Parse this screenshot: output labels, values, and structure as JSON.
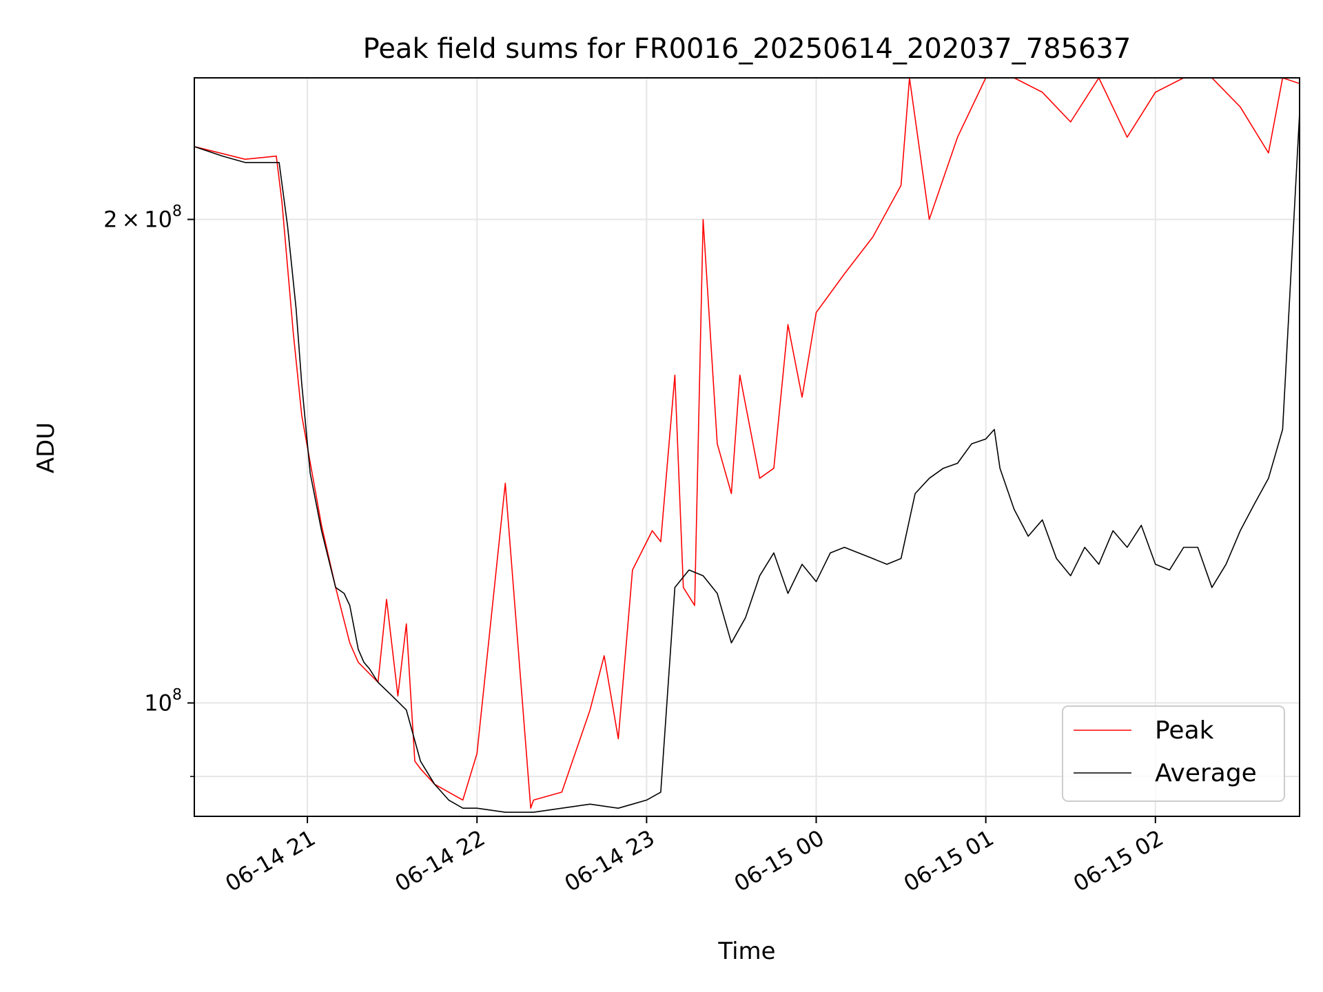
{
  "chart_data": {
    "type": "line",
    "title": "Peak field sums for FR0016_20250614_202037_785637",
    "xlabel": "Time",
    "ylabel": "ADU",
    "y_scale": "log",
    "xlim": [
      "2025-06-14 20:20",
      "2025-06-15 02:51"
    ],
    "ylim": [
      85000000,
      245000000
    ],
    "x_ticks": [
      "06-14 21",
      "06-14 22",
      "06-14 23",
      "06-15 00",
      "06-15 01",
      "06-15 02"
    ],
    "x_tick_times": [
      "2025-06-14 21:00",
      "2025-06-14 22:00",
      "2025-06-14 23:00",
      "2025-06-15 00:00",
      "2025-06-15 01:00",
      "2025-06-15 02:00"
    ],
    "y_tick_labels": [
      {
        "value": 200000000,
        "mantissa": "2",
        "sep": "×",
        "base": "10",
        "exp": "8"
      },
      {
        "value": 100000000,
        "mantissa": "",
        "sep": "",
        "base": "10",
        "exp": "8"
      }
    ],
    "y_minor_ticks": [
      90000000
    ],
    "grid": true,
    "legend_position": "lower-right",
    "colors": {
      "peak": "#ff0000",
      "average": "#000000",
      "grid": "#e6e6e6"
    },
    "series": [
      {
        "name": "Peak",
        "x": [
          "2025-06-14 20:20",
          "2025-06-14 20:38",
          "2025-06-14 20:49",
          "2025-06-14 20:51",
          "2025-06-14 20:55",
          "2025-06-14 20:58",
          "2025-06-14 21:05",
          "2025-06-14 21:10",
          "2025-06-14 21:15",
          "2025-06-14 21:18",
          "2025-06-14 21:25",
          "2025-06-14 21:28",
          "2025-06-14 21:32",
          "2025-06-14 21:35",
          "2025-06-14 21:38",
          "2025-06-14 21:40",
          "2025-06-14 21:45",
          "2025-06-14 21:50",
          "2025-06-14 21:55",
          "2025-06-14 22:00",
          "2025-06-14 22:10",
          "2025-06-14 22:19",
          "2025-06-14 22:20",
          "2025-06-14 22:30",
          "2025-06-14 22:40",
          "2025-06-14 22:45",
          "2025-06-14 22:50",
          "2025-06-14 22:55",
          "2025-06-14 23:02",
          "2025-06-14 23:05",
          "2025-06-14 23:10",
          "2025-06-14 23:13",
          "2025-06-14 23:17",
          "2025-06-14 23:20",
          "2025-06-14 23:25",
          "2025-06-14 23:30",
          "2025-06-14 23:33",
          "2025-06-14 23:40",
          "2025-06-14 23:45",
          "2025-06-14 23:50",
          "2025-06-14 23:55",
          "2025-06-15 00:00",
          "2025-06-15 00:10",
          "2025-06-15 00:20",
          "2025-06-15 00:30",
          "2025-06-15 00:33",
          "2025-06-15 00:40",
          "2025-06-15 00:50",
          "2025-06-15 01:00",
          "2025-06-15 01:10",
          "2025-06-15 01:20",
          "2025-06-15 01:30",
          "2025-06-15 01:40",
          "2025-06-15 01:50",
          "2025-06-15 02:00",
          "2025-06-15 02:10",
          "2025-06-15 02:20",
          "2025-06-15 02:30",
          "2025-06-15 02:40",
          "2025-06-15 02:45",
          "2025-06-15 02:51"
        ],
        "y": [
          222000000,
          218000000,
          219000000,
          205000000,
          170000000,
          151000000,
          129000000,
          118000000,
          109000000,
          106000000,
          103000000,
          116000000,
          101000000,
          112000000,
          92000000,
          91000000,
          89000000,
          88000000,
          87000000,
          93000000,
          137000000,
          86000000,
          87000000,
          88000000,
          99000000,
          107000000,
          95000000,
          121000000,
          128000000,
          126000000,
          160000000,
          118000000,
          115000000,
          200000000,
          145000000,
          135000000,
          160000000,
          138000000,
          140000000,
          172000000,
          155000000,
          175000000,
          185000000,
          195000000,
          210000000,
          245000000,
          200000000,
          225000000,
          245000000,
          245000000,
          240000000,
          230000000,
          245000000,
          225000000,
          240000000,
          245000000,
          245000000,
          235000000,
          220000000,
          245000000,
          243000000
        ]
      },
      {
        "name": "Average",
        "x": [
          "2025-06-14 20:20",
          "2025-06-14 20:30",
          "2025-06-14 20:38",
          "2025-06-14 20:50",
          "2025-06-14 20:53",
          "2025-06-14 20:56",
          "2025-06-14 20:58",
          "2025-06-14 21:01",
          "2025-06-14 21:05",
          "2025-06-14 21:10",
          "2025-06-14 21:13",
          "2025-06-14 21:15",
          "2025-06-14 21:18",
          "2025-06-14 21:20",
          "2025-06-14 21:22",
          "2025-06-14 21:25",
          "2025-06-14 21:30",
          "2025-06-14 21:35",
          "2025-06-14 21:40",
          "2025-06-14 21:45",
          "2025-06-14 21:50",
          "2025-06-14 21:55",
          "2025-06-14 22:00",
          "2025-06-14 22:10",
          "2025-06-14 22:20",
          "2025-06-14 22:30",
          "2025-06-14 22:40",
          "2025-06-14 22:50",
          "2025-06-14 22:55",
          "2025-06-14 23:00",
          "2025-06-14 23:05",
          "2025-06-14 23:10",
          "2025-06-14 23:15",
          "2025-06-14 23:20",
          "2025-06-14 23:25",
          "2025-06-14 23:30",
          "2025-06-14 23:35",
          "2025-06-14 23:40",
          "2025-06-14 23:45",
          "2025-06-14 23:50",
          "2025-06-14 23:55",
          "2025-06-15 00:00",
          "2025-06-15 00:05",
          "2025-06-15 00:10",
          "2025-06-15 00:15",
          "2025-06-15 00:20",
          "2025-06-15 00:25",
          "2025-06-15 00:30",
          "2025-06-15 00:35",
          "2025-06-15 00:40",
          "2025-06-15 00:45",
          "2025-06-15 00:50",
          "2025-06-15 00:55",
          "2025-06-15 01:00",
          "2025-06-15 01:03",
          "2025-06-15 01:05",
          "2025-06-15 01:10",
          "2025-06-15 01:15",
          "2025-06-15 01:20",
          "2025-06-15 01:25",
          "2025-06-15 01:30",
          "2025-06-15 01:35",
          "2025-06-15 01:40",
          "2025-06-15 01:45",
          "2025-06-15 01:50",
          "2025-06-15 01:55",
          "2025-06-15 02:00",
          "2025-06-15 02:05",
          "2025-06-15 02:10",
          "2025-06-15 02:15",
          "2025-06-15 02:20",
          "2025-06-15 02:25",
          "2025-06-15 02:30",
          "2025-06-15 02:35",
          "2025-06-15 02:40",
          "2025-06-15 02:45",
          "2025-06-15 02:51"
        ],
        "y": [
          222000000,
          219000000,
          217000000,
          217000000,
          198000000,
          176000000,
          158000000,
          139000000,
          128000000,
          118000000,
          117000000,
          115000000,
          108000000,
          106000000,
          105000000,
          103000000,
          101000000,
          99000000,
          92000000,
          89000000,
          87000000,
          86000000,
          86000000,
          85500000,
          85500000,
          86000000,
          86500000,
          86000000,
          86500000,
          87000000,
          88000000,
          118000000,
          121000000,
          120000000,
          117000000,
          109000000,
          113000000,
          120000000,
          124000000,
          117000000,
          122000000,
          119000000,
          124000000,
          125000000,
          124000000,
          123000000,
          122000000,
          123000000,
          135000000,
          138000000,
          140000000,
          141000000,
          145000000,
          146000000,
          148000000,
          140000000,
          132000000,
          127000000,
          130000000,
          123000000,
          120000000,
          125000000,
          122000000,
          128000000,
          125000000,
          129000000,
          122000000,
          121000000,
          125000000,
          125000000,
          118000000,
          122000000,
          128000000,
          133000000,
          138000000,
          148000000,
          233000000
        ]
      }
    ]
  }
}
